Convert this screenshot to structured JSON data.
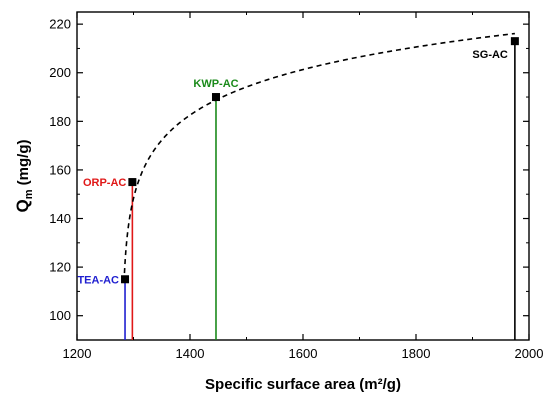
{
  "chart_data": {
    "type": "scatter",
    "title": "",
    "xlabel": "Specific surface area (m²/g)",
    "ylabel_main": "Q",
    "ylabel_sub": "m",
    "ylabel_rest": " (mg/g)",
    "xlim": [
      1200,
      2000
    ],
    "ylim": [
      90,
      225
    ],
    "xticks": [
      1200,
      1400,
      1600,
      1800,
      2000
    ],
    "yticks": [
      100,
      120,
      140,
      160,
      180,
      200,
      220
    ],
    "minor_x_step": 100,
    "minor_y_step": 10,
    "grid": false,
    "points": [
      {
        "label": "TEA-AC",
        "x": 1285,
        "y": 115,
        "color": "#1f1fd0"
      },
      {
        "label": "ORP-AC",
        "x": 1298,
        "y": 155,
        "color": "#e01818"
      },
      {
        "label": "KWP-AC",
        "x": 1446,
        "y": 190,
        "color": "#1a8a1a"
      },
      {
        "label": "SG-AC",
        "x": 1975,
        "y": 213,
        "color": "#000000"
      }
    ],
    "trend": {
      "style": "dashed",
      "type": "logarithmic fit",
      "color": "#000000"
    }
  }
}
